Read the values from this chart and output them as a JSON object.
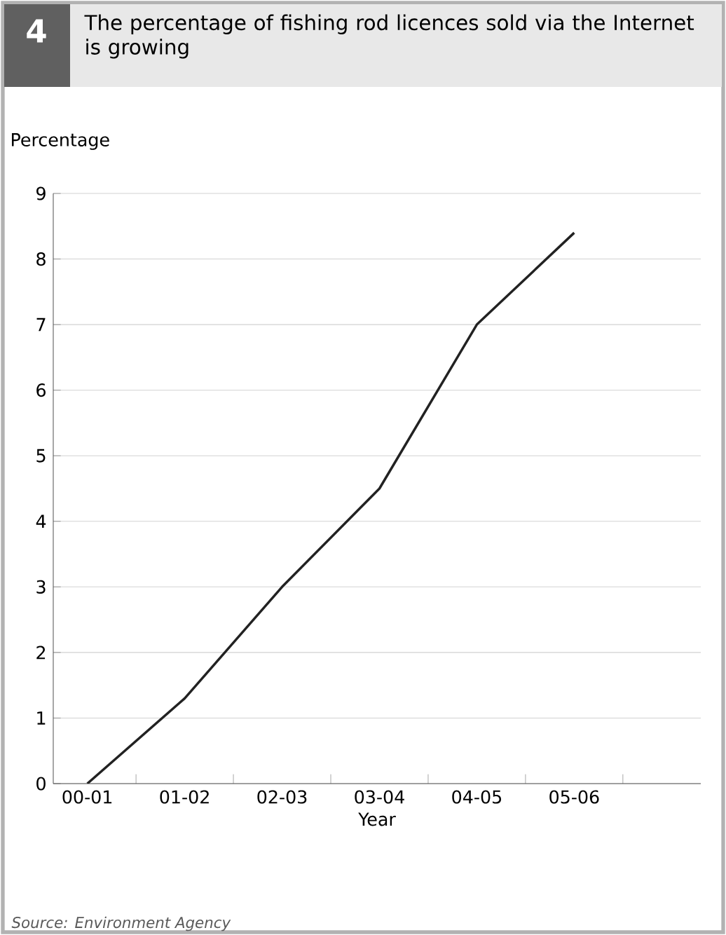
{
  "chart_data": {
    "type": "line",
    "title": "The percentage of fishing rod licences sold via the Internet is growing",
    "xlabel": "Year",
    "ylabel": "Percentage",
    "categories": [
      "00-01",
      "01-02",
      "02-03",
      "03-04",
      "04-05",
      "05-06"
    ],
    "series": [
      {
        "color": "#222222",
        "values": [
          0,
          1.3,
          3.0,
          4.5,
          7.0,
          8.4
        ]
      }
    ],
    "ylim": [
      0,
      9
    ],
    "yticks": [
      0,
      1,
      2,
      3,
      4,
      5,
      6,
      7,
      8,
      9
    ],
    "grid": "y",
    "marker": "none",
    "line_style": "solid",
    "annotations": [
      "4",
      "Source: Environment Agency"
    ]
  }
}
